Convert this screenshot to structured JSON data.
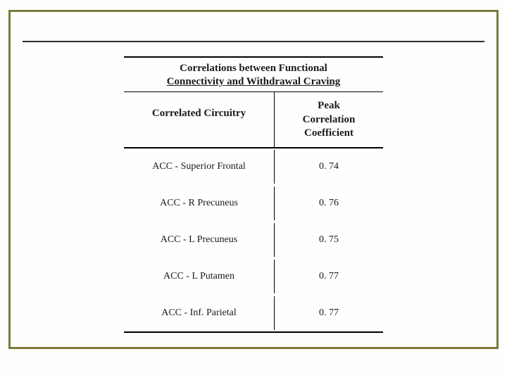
{
  "slide": {
    "background_color": "#fefefd",
    "frame_border_color": "#7a7a3c",
    "top_rule_color": "#2a2a2c",
    "font_family": "Georgia, 'Times New Roman', serif",
    "text_color": "#1a1a1a"
  },
  "table": {
    "title_line1": "Correlations between Functional",
    "title_line2": "Connectivity and Withdrawal Craving",
    "header_left": "Correlated Circuitry",
    "header_right_line1": "Peak",
    "header_right_line2": "Correlation",
    "header_right_line3": "Coefficient",
    "rows": [
      {
        "circuitry": "ACC - Superior Frontal",
        "coef": "0. 74"
      },
      {
        "circuitry": "ACC - R Precuneus",
        "coef": "0. 76"
      },
      {
        "circuitry": "ACC - L Precuneus",
        "coef": "0. 75"
      },
      {
        "circuitry": "ACC - L Putamen",
        "coef": "0. 77"
      },
      {
        "circuitry": "ACC - Inf. Parietal",
        "coef": "0. 77"
      }
    ],
    "border_color": "#000000",
    "title_fontsize": 15,
    "header_fontsize": 15,
    "cell_fontsize": 14
  }
}
